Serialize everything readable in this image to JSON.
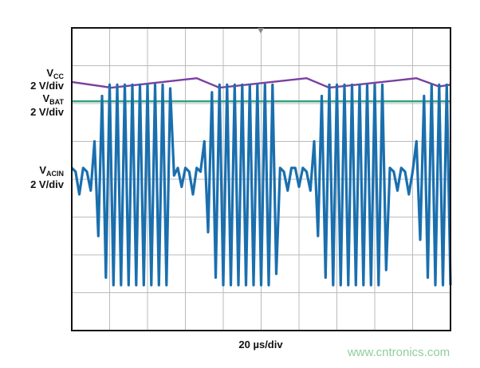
{
  "chart_data": {
    "type": "scope",
    "x_label": "20 µs/div",
    "watermark": "www.cntronics.com",
    "xlim": [
      0,
      10
    ],
    "ylim": [
      0,
      8
    ],
    "xticks": [
      0,
      1,
      2,
      3,
      4,
      5,
      6,
      7,
      8,
      9,
      10
    ],
    "yticks": [
      0,
      1,
      2,
      3,
      4,
      5,
      6,
      7,
      8
    ],
    "grid": true,
    "series": [
      {
        "name": "V",
        "sub": "CC",
        "scale": "2 V/div",
        "color": "#7b3fa0",
        "x": [
          0,
          1.05,
          3.3,
          3.9,
          6.2,
          6.8,
          9.1,
          9.7,
          10
        ],
        "values": [
          6.57,
          6.42,
          6.67,
          6.42,
          6.67,
          6.42,
          6.67,
          6.45,
          6.5
        ]
      },
      {
        "name": "V",
        "sub": "BAT",
        "scale": "2 V/div",
        "color": "#2ea37a",
        "x": [
          0,
          10
        ],
        "values": [
          6.06,
          6.06
        ]
      },
      {
        "name": "V",
        "sub": "ACIN",
        "scale": "2 V/div",
        "color": "#1a6fae",
        "x": [
          0,
          0.1,
          0.2,
          0.3,
          0.4,
          0.5,
          0.6,
          0.7,
          0.8,
          0.9,
          1,
          1.1,
          1.2,
          1.3,
          1.4,
          1.5,
          1.6,
          1.7,
          1.8,
          1.9,
          2,
          2.1,
          2.2,
          2.3,
          2.4,
          2.5,
          2.6,
          2.7,
          2.8,
          2.9,
          3,
          3.1,
          3.2,
          3.3,
          3.4,
          3.5,
          3.6,
          3.7,
          3.8,
          3.9,
          4,
          4.1,
          4.2,
          4.3,
          4.4,
          4.5,
          4.6,
          4.7,
          4.8,
          4.9,
          5,
          5.1,
          5.2,
          5.3,
          5.4,
          5.5,
          5.6,
          5.7,
          5.8,
          5.9,
          6,
          6.1,
          6.2,
          6.3,
          6.4,
          6.5,
          6.6,
          6.7,
          6.8,
          6.9,
          7,
          7.1,
          7.2,
          7.3,
          7.4,
          7.5,
          7.6,
          7.7,
          7.8,
          7.9,
          8,
          8.1,
          8.2,
          8.3,
          8.4,
          8.5,
          8.6,
          8.7,
          8.8,
          8.9,
          9,
          9.1,
          9.2,
          9.3,
          9.4,
          9.5,
          9.6,
          9.7,
          9.8,
          9.9,
          10
        ],
        "values": [
          4.3,
          4.2,
          3.6,
          4.3,
          4.2,
          3.7,
          5.0,
          2.5,
          6.2,
          1.4,
          6.5,
          1.2,
          6.5,
          1.2,
          6.5,
          1.2,
          6.5,
          1.2,
          6.5,
          1.2,
          6.5,
          1.2,
          6.5,
          1.2,
          6.5,
          1.2,
          6.4,
          4.1,
          4.3,
          3.8,
          4.3,
          4.2,
          3.6,
          4.3,
          4.2,
          5.0,
          2.6,
          6.3,
          1.4,
          6.5,
          1.2,
          6.5,
          1.2,
          6.5,
          1.2,
          6.5,
          1.2,
          6.5,
          1.2,
          6.5,
          1.2,
          6.5,
          1.2,
          6.5,
          1.5,
          4.3,
          4.2,
          3.7,
          4.3,
          4.3,
          3.8,
          4.3,
          4.2,
          3.7,
          5.0,
          2.5,
          6.2,
          1.4,
          6.5,
          1.2,
          6.5,
          1.2,
          6.5,
          1.2,
          6.5,
          1.2,
          6.5,
          1.2,
          6.5,
          1.2,
          6.5,
          1.2,
          6.5,
          1.6,
          4.3,
          4.2,
          3.7,
          4.3,
          4.2,
          3.6,
          4.2,
          5.0,
          2.4,
          6.2,
          1.4,
          6.5,
          1.2,
          6.5,
          1.2,
          6.5,
          1.2
        ]
      }
    ]
  }
}
